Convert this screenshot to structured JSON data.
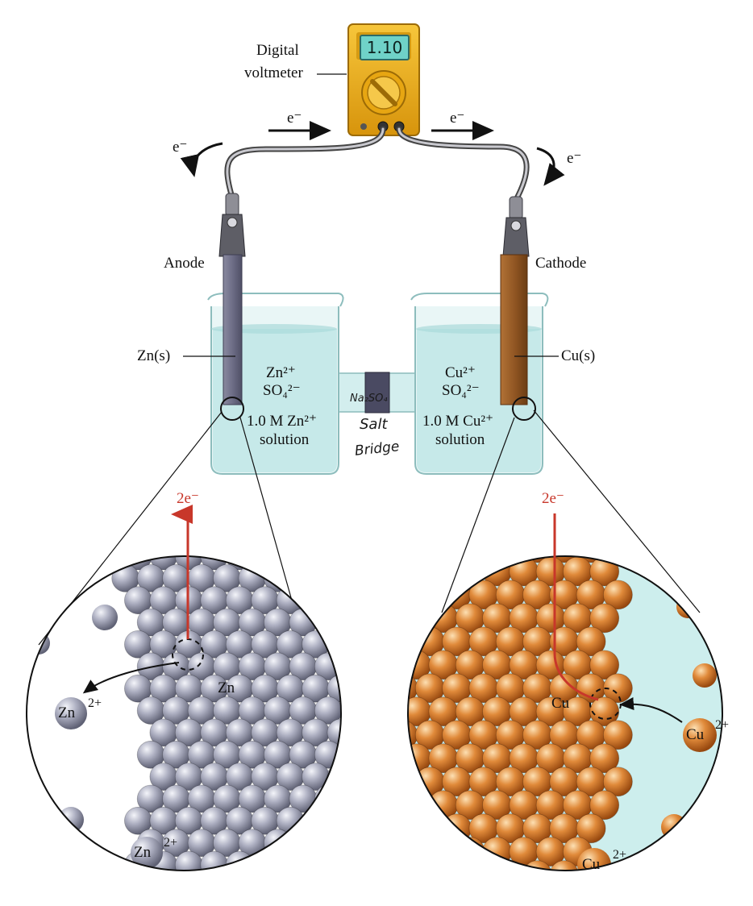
{
  "voltmeter": {
    "label_line1": "Digital",
    "label_line2": "voltmeter",
    "reading": "1.10"
  },
  "electron_flow": {
    "top_left": "e⁻",
    "top_right": "e⁻",
    "side_left": "e⁻",
    "side_right": "e⁻"
  },
  "anode": {
    "title": "Anode",
    "electrode": "Zn(s)",
    "ion_line1": "Zn²⁺",
    "ion_line2": "SO₄²⁻",
    "solution_line1": "1.0 M Zn²⁺",
    "solution_line2": "solution"
  },
  "cathode": {
    "title": "Cathode",
    "electrode": "Cu(s)",
    "ion_line1": "Cu²⁺",
    "ion_line2": "SO₄²⁻",
    "solution_line1": "1.0 M Cu²⁺",
    "solution_line2": "solution"
  },
  "salt_bridge": {
    "formula": "Na₂SO₄",
    "line1": "Salt",
    "line2": "Bridge"
  },
  "zoom_left": {
    "electrons": "2e⁻",
    "atom_label": "Zn",
    "ion_label_1": "Zn",
    "ion_label_2": "Zn",
    "ion_charge": "2+"
  },
  "zoom_right": {
    "electrons": "2e⁻",
    "atom_label": "Cu",
    "ion_label_1": "Cu",
    "ion_label_2": "Cu",
    "ion_charge": "2+"
  },
  "colors": {
    "zinc": "#a9abbd",
    "copper": "#e08a3a",
    "solution": "#cdeeed",
    "voltmeter_body": "#f2b21c",
    "electron_red": "#c8372a"
  }
}
